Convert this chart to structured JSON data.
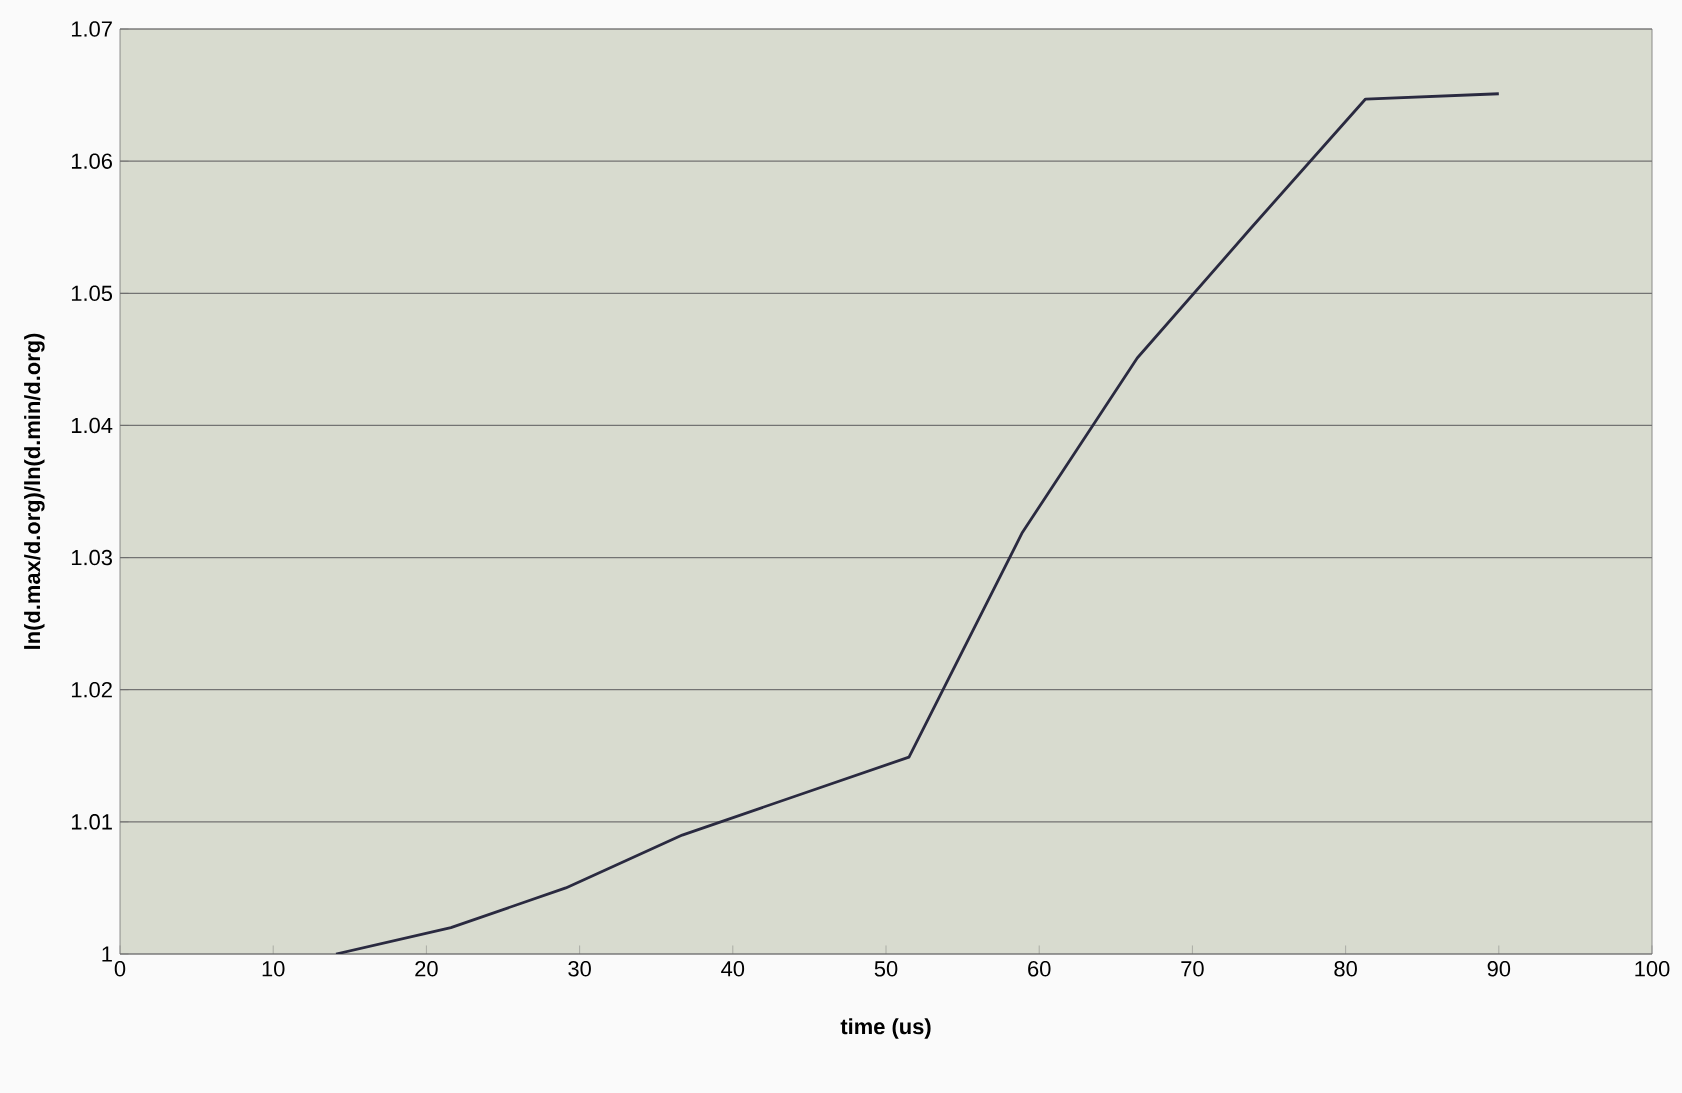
{
  "chart_data": {
    "type": "line",
    "xlabel": "time (us)",
    "ylabel": "ln(d.max/d.org)/ln(d.min/d.org)",
    "x": [
      14.1,
      21.6,
      29.1,
      36.7,
      51.5,
      58.9,
      66.4,
      73.8,
      81.3,
      90.0
    ],
    "series": [
      {
        "color": "#2a2a40",
        "values": [
          1.0,
          1.002,
          1.005,
          1.009,
          1.0149,
          1.0319,
          1.0451,
          1.0549,
          1.0647,
          1.0651
        ]
      }
    ],
    "xlim": [
      0,
      100
    ],
    "xticks": [
      0,
      10,
      20,
      30,
      40,
      50,
      60,
      70,
      80,
      90,
      100
    ],
    "ylim": [
      1,
      1.07
    ],
    "yticks": [
      1,
      1.01,
      1.02,
      1.03,
      1.04,
      1.05,
      1.06,
      1.07
    ],
    "grid": "y",
    "marker": "none",
    "line_style": "solid"
  }
}
